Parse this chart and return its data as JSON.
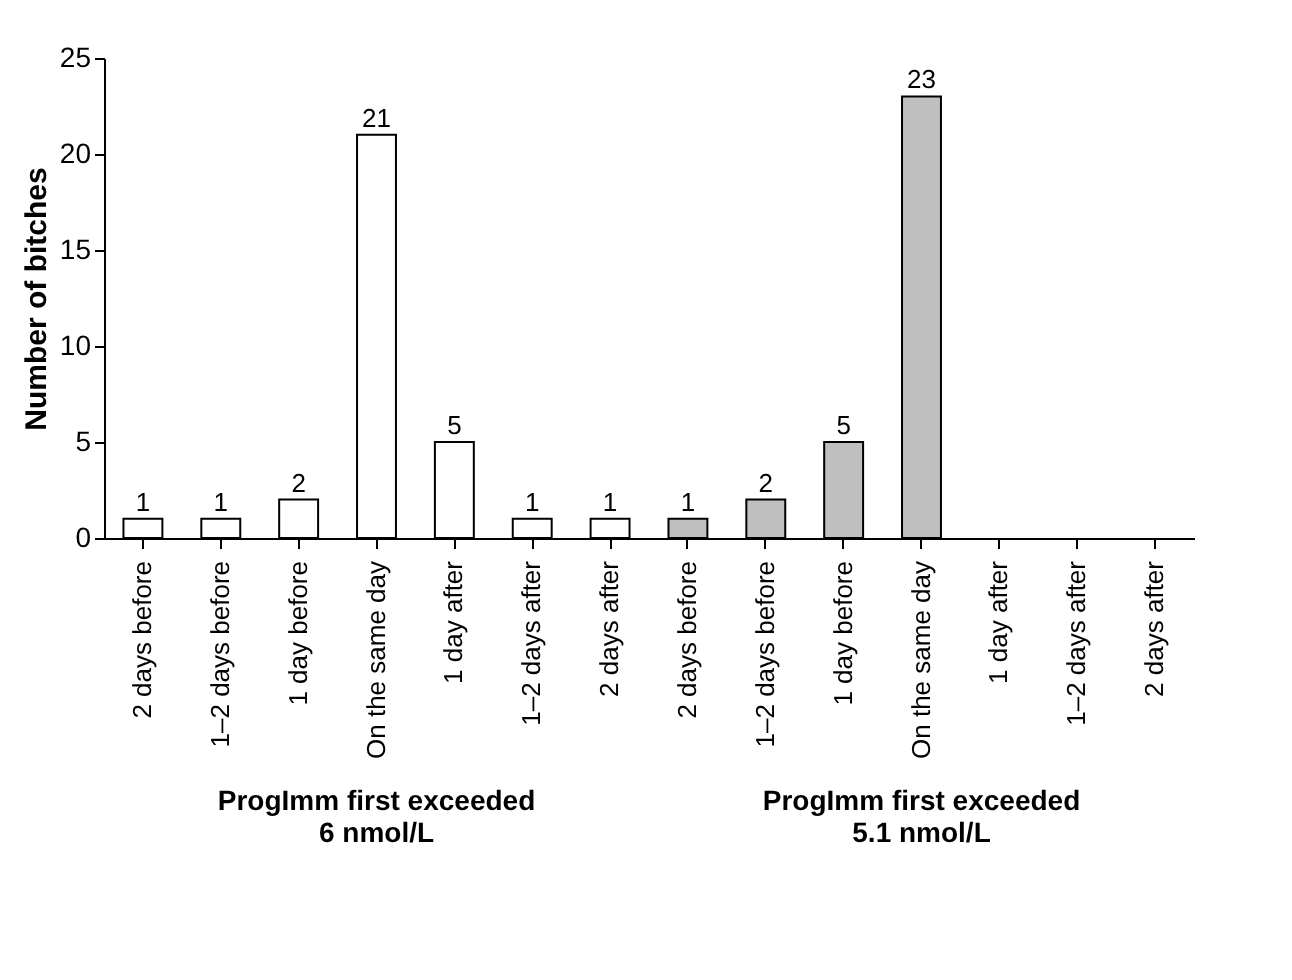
{
  "chart_data": {
    "type": "bar",
    "ylabel": "Number of bitches",
    "categories": [
      "2 days before",
      "1–2 days before",
      "1 day before",
      "On the same day",
      "1 day after",
      "1–2 days after",
      "2 days after",
      "2 days before",
      "1–2 days before",
      "1 day before",
      "On the same day",
      "1 day after",
      "1–2 days after",
      "2 days after"
    ],
    "series": [
      {
        "color": "#ffffff",
        "values": [
          1,
          1,
          2,
          21,
          5,
          1,
          1,
          null,
          null,
          null,
          null,
          null,
          null,
          null
        ]
      },
      {
        "color": "#bfbfbf",
        "values": [
          null,
          null,
          null,
          null,
          null,
          null,
          null,
          1,
          2,
          5,
          23,
          null,
          null,
          null
        ]
      }
    ],
    "annotations": [
      "ProgImm first exceeded\n6 nmol/L",
      "ProgImm first exceeded\n5.1 nmol/L"
    ],
    "ylim": [
      0,
      25
    ],
    "yticks": [
      0,
      5,
      10,
      15,
      20,
      25
    ],
    "data_labels": true,
    "grid": false,
    "legend": false
  }
}
